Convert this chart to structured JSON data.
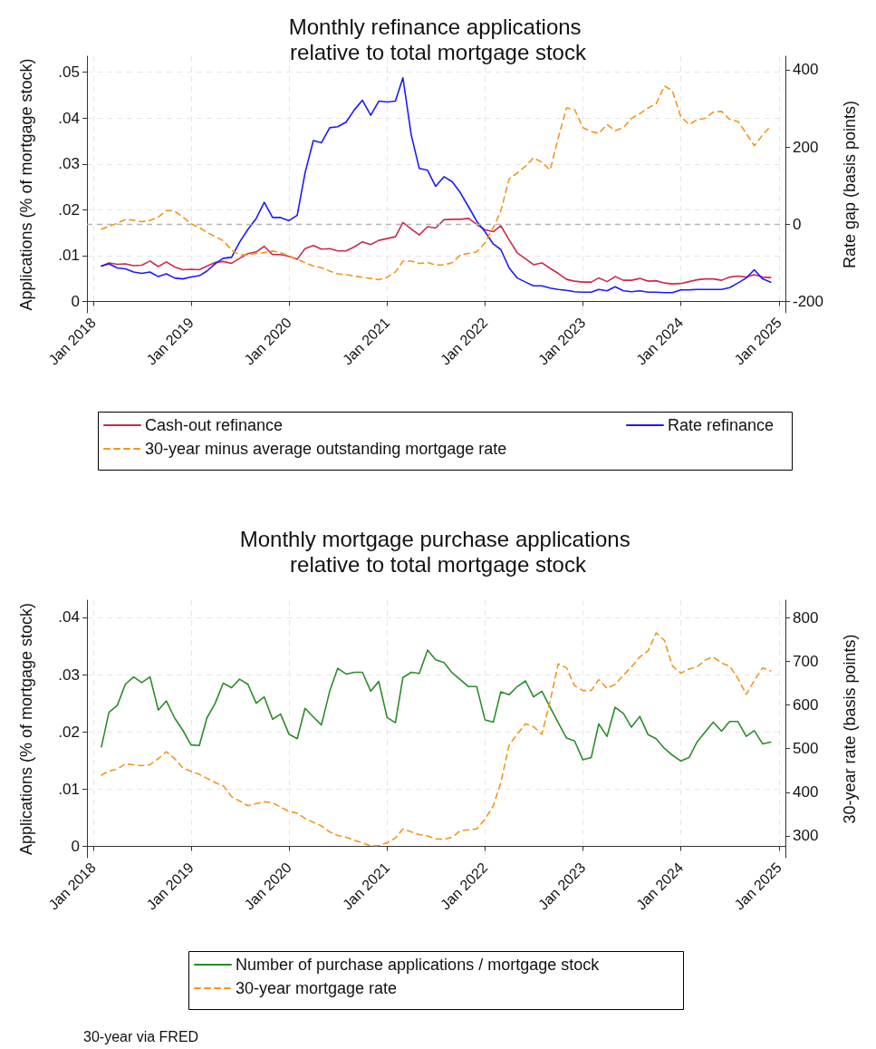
{
  "chart_data": [
    {
      "type": "line",
      "title": "Monthly refinance applications relative to total mortgage stock",
      "ylabel": "Applications (% of mortgage stock)",
      "y2label": "Rate gap (basis points)",
      "x": [
        "2018-02",
        "2018-03",
        "2018-04",
        "2018-05",
        "2018-06",
        "2018-07",
        "2018-08",
        "2018-09",
        "2018-10",
        "2018-11",
        "2018-12",
        "2019-01",
        "2019-02",
        "2019-03",
        "2019-04",
        "2019-05",
        "2019-06",
        "2019-07",
        "2019-08",
        "2019-09",
        "2019-10",
        "2019-11",
        "2019-12",
        "2020-01",
        "2020-02",
        "2020-03",
        "2020-04",
        "2020-05",
        "2020-06",
        "2020-07",
        "2020-08",
        "2020-09",
        "2020-10",
        "2020-11",
        "2020-12",
        "2021-01",
        "2021-02",
        "2021-03",
        "2021-04",
        "2021-05",
        "2021-06",
        "2021-07",
        "2021-08",
        "2021-09",
        "2021-10",
        "2021-11",
        "2021-12",
        "2022-01",
        "2022-02",
        "2022-03",
        "2022-04",
        "2022-05",
        "2022-06",
        "2022-07",
        "2022-08",
        "2022-09",
        "2022-10",
        "2022-11",
        "2022-12",
        "2023-01",
        "2023-02",
        "2023-03",
        "2023-04",
        "2023-05",
        "2023-06",
        "2023-07",
        "2023-08",
        "2023-09",
        "2023-10",
        "2023-11",
        "2023-12",
        "2024-01",
        "2024-02",
        "2024-03",
        "2024-04",
        "2024-05",
        "2024-06",
        "2024-07",
        "2024-08",
        "2024-09",
        "2024-10",
        "2024-11",
        "2024-12"
      ],
      "xlim": [
        "2017-12-09",
        "2025-01-25"
      ],
      "xticks": [
        {
          "value": "2018-01",
          "label": "Jan 2018"
        },
        {
          "value": "2019-01",
          "label": "Jan 2019"
        },
        {
          "value": "2020-01",
          "label": "Jan 2020"
        },
        {
          "value": "2021-01",
          "label": "Jan 2021"
        },
        {
          "value": "2022-01",
          "label": "Jan 2022"
        },
        {
          "value": "2023-01",
          "label": "Jan 2023"
        },
        {
          "value": "2024-01",
          "label": "Jan 2024"
        },
        {
          "value": "2025-01",
          "label": "Jan 2025"
        }
      ],
      "ylim": [
        -0.0025,
        0.0535
      ],
      "yticks": [
        {
          "value": 0,
          "label": "0"
        },
        {
          "value": 0.01,
          "label": ".01"
        },
        {
          "value": 0.02,
          "label": ".02"
        },
        {
          "value": 0.03,
          "label": ".03"
        },
        {
          "value": 0.04,
          "label": ".04"
        },
        {
          "value": 0.05,
          "label": ".05"
        }
      ],
      "y2lim": [
        -230,
        435
      ],
      "y2ticks": [
        -200,
        0,
        200,
        400
      ],
      "series": [
        {
          "name": "Cash-out refinance",
          "color": "#cc2a4a",
          "line_style": "solid",
          "values": [
            0.0077,
            0.0084,
            0.0081,
            0.0082,
            0.0078,
            0.0079,
            0.0088,
            0.0076,
            0.0086,
            0.0075,
            0.0069,
            0.007,
            0.0069,
            0.0077,
            0.0085,
            0.0087,
            0.0083,
            0.0094,
            0.0104,
            0.0108,
            0.012,
            0.0102,
            0.0102,
            0.0098,
            0.0092,
            0.0115,
            0.0122,
            0.0114,
            0.0115,
            0.011,
            0.011,
            0.0119,
            0.013,
            0.0124,
            0.0133,
            0.0137,
            0.0141,
            0.0172,
            0.0158,
            0.0145,
            0.0163,
            0.016,
            0.0178,
            0.0179,
            0.0179,
            0.0181,
            0.0168,
            0.0156,
            0.0152,
            0.0165,
            0.0134,
            0.0106,
            0.0093,
            0.008,
            0.0084,
            0.0072,
            0.0061,
            0.0048,
            0.0044,
            0.0042,
            0.0042,
            0.0051,
            0.0043,
            0.0054,
            0.0046,
            0.0046,
            0.005,
            0.0044,
            0.0045,
            0.004,
            0.0038,
            0.0039,
            0.0043,
            0.0047,
            0.0049,
            0.0049,
            0.0046,
            0.0053,
            0.0055,
            0.0053,
            0.0058,
            0.0053,
            0.0052
          ]
        },
        {
          "name": "Rate refinance",
          "color": "#1a1aff",
          "line_style": "solid",
          "values": [
            0.0077,
            0.0082,
            0.0073,
            0.0071,
            0.0064,
            0.0061,
            0.0064,
            0.0054,
            0.006,
            0.0051,
            0.0049,
            0.0053,
            0.0056,
            0.0066,
            0.0082,
            0.0094,
            0.0096,
            0.0129,
            0.0157,
            0.0181,
            0.0216,
            0.0183,
            0.0183,
            0.0176,
            0.0188,
            0.028,
            0.0351,
            0.0346,
            0.0379,
            0.0381,
            0.0391,
            0.0418,
            0.0439,
            0.0406,
            0.0437,
            0.0435,
            0.0437,
            0.0488,
            0.0363,
            0.029,
            0.0286,
            0.0251,
            0.0272,
            0.0261,
            0.0237,
            0.0206,
            0.0175,
            0.0152,
            0.0125,
            0.0113,
            0.0073,
            0.0051,
            0.0042,
            0.0034,
            0.0034,
            0.0029,
            0.0026,
            0.0024,
            0.0021,
            0.002,
            0.002,
            0.0026,
            0.0023,
            0.0032,
            0.0023,
            0.0021,
            0.0023,
            0.002,
            0.002,
            0.0019,
            0.0019,
            0.0025,
            0.0025,
            0.0026,
            0.0026,
            0.0026,
            0.0026,
            0.003,
            0.004,
            0.0051,
            0.0069,
            0.0049,
            0.0042
          ]
        },
        {
          "name": "30-year minus average outstanding mortgage rate",
          "color": "#f0961e",
          "line_style": "dashed",
          "axis": "y2",
          "values": [
            -13,
            -6,
            2,
            12,
            10,
            6,
            9,
            18,
            35,
            34,
            18,
            1,
            -9,
            -21,
            -33,
            -43,
            -67,
            -80,
            -80,
            -76,
            -74,
            -70,
            -74,
            -83,
            -91,
            -100,
            -109,
            -113,
            -122,
            -129,
            -131,
            -135,
            -138,
            -141,
            -144,
            -138,
            -124,
            -96,
            -96,
            -102,
            -100,
            -106,
            -106,
            -100,
            -80,
            -76,
            -72,
            -49,
            -9,
            34,
            117,
            132,
            150,
            172,
            160,
            140,
            223,
            301,
            297,
            250,
            240,
            235,
            258,
            242,
            250,
            274,
            286,
            301,
            311,
            358,
            345,
            278,
            258,
            270,
            274,
            290,
            292,
            271,
            266,
            235,
            203,
            231,
            254
          ]
        }
      ],
      "ref_lines": [
        {
          "axis": "y2",
          "value": 0,
          "color": "#b4b4b4",
          "line_style": "dashed"
        }
      ],
      "marker": "none",
      "grid": true,
      "legend": "bottom"
    },
    {
      "type": "line",
      "title": "Monthly mortgage purchase applications relative to total mortgage stock",
      "ylabel": "Applications (% of mortgage stock)",
      "y2label": "30-year rate (basis points)",
      "x": [
        "2018-02",
        "2018-03",
        "2018-04",
        "2018-05",
        "2018-06",
        "2018-07",
        "2018-08",
        "2018-09",
        "2018-10",
        "2018-11",
        "2018-12",
        "2019-01",
        "2019-02",
        "2019-03",
        "2019-04",
        "2019-05",
        "2019-06",
        "2019-07",
        "2019-08",
        "2019-09",
        "2019-10",
        "2019-11",
        "2019-12",
        "2020-01",
        "2020-02",
        "2020-03",
        "2020-04",
        "2020-05",
        "2020-06",
        "2020-07",
        "2020-08",
        "2020-09",
        "2020-10",
        "2020-11",
        "2020-12",
        "2021-01",
        "2021-02",
        "2021-03",
        "2021-04",
        "2021-05",
        "2021-06",
        "2021-07",
        "2021-08",
        "2021-09",
        "2021-10",
        "2021-11",
        "2021-12",
        "2022-01",
        "2022-02",
        "2022-03",
        "2022-04",
        "2022-05",
        "2022-06",
        "2022-07",
        "2022-08",
        "2022-09",
        "2022-10",
        "2022-11",
        "2022-12",
        "2023-01",
        "2023-02",
        "2023-03",
        "2023-04",
        "2023-05",
        "2023-06",
        "2023-07",
        "2023-08",
        "2023-09",
        "2023-10",
        "2023-11",
        "2023-12",
        "2024-01",
        "2024-02",
        "2024-03",
        "2024-04",
        "2024-05",
        "2024-06",
        "2024-07",
        "2024-08",
        "2024-09",
        "2024-10",
        "2024-11",
        "2024-12"
      ],
      "xlim": [
        "2017-12-09",
        "2025-01-25"
      ],
      "xticks": [
        {
          "value": "2018-01",
          "label": "Jan 2018"
        },
        {
          "value": "2019-01",
          "label": "Jan 2019"
        },
        {
          "value": "2020-01",
          "label": "Jan 2020"
        },
        {
          "value": "2021-01",
          "label": "Jan 2021"
        },
        {
          "value": "2022-01",
          "label": "Jan 2022"
        },
        {
          "value": "2023-01",
          "label": "Jan 2023"
        },
        {
          "value": "2024-01",
          "label": "Jan 2024"
        },
        {
          "value": "2025-01",
          "label": "Jan 2025"
        }
      ],
      "ylim": [
        -0.002,
        0.043
      ],
      "yticks": [
        {
          "value": 0,
          "label": "0"
        },
        {
          "value": 0.01,
          "label": ".01"
        },
        {
          "value": 0.02,
          "label": ".02"
        },
        {
          "value": 0.03,
          "label": ".03"
        },
        {
          "value": 0.04,
          "label": ".04"
        }
      ],
      "y2lim": [
        250,
        840
      ],
      "y2ticks": [
        300,
        400,
        500,
        600,
        700,
        800
      ],
      "series": [
        {
          "name": "Number of purchase applications / mortgage stock",
          "color": "#2a8c2a",
          "line_style": "solid",
          "values": [
            0.0174,
            0.0234,
            0.0246,
            0.0283,
            0.0296,
            0.0286,
            0.0296,
            0.0238,
            0.0254,
            0.0224,
            0.0203,
            0.0177,
            0.0176,
            0.0224,
            0.025,
            0.0285,
            0.0277,
            0.0292,
            0.0283,
            0.025,
            0.0261,
            0.0222,
            0.0231,
            0.0196,
            0.0188,
            0.0241,
            0.0226,
            0.0212,
            0.0271,
            0.0311,
            0.0301,
            0.0304,
            0.0304,
            0.0271,
            0.0288,
            0.0225,
            0.0216,
            0.0295,
            0.0304,
            0.0302,
            0.0343,
            0.0326,
            0.0321,
            0.0303,
            0.0291,
            0.0279,
            0.0279,
            0.0221,
            0.0217,
            0.027,
            0.0265,
            0.0279,
            0.0289,
            0.0261,
            0.0271,
            0.0243,
            0.0216,
            0.0189,
            0.0184,
            0.0151,
            0.0155,
            0.0214,
            0.0192,
            0.0243,
            0.0232,
            0.0208,
            0.0227,
            0.0195,
            0.0188,
            0.0171,
            0.0159,
            0.0149,
            0.0155,
            0.0182,
            0.02,
            0.0217,
            0.0201,
            0.0218,
            0.0218,
            0.0192,
            0.0202,
            0.0179,
            0.0182
          ]
        },
        {
          "name": "30-year mortgage rate",
          "color": "#f0961e",
          "line_style": "dashed",
          "axis": "y2",
          "values": [
            439,
            449,
            453,
            465,
            463,
            461,
            463,
            477,
            493,
            477,
            456,
            448,
            441,
            432,
            422,
            415,
            390,
            380,
            369,
            374,
            378,
            376,
            366,
            356,
            352,
            340,
            331,
            323,
            309,
            301,
            297,
            290,
            284,
            277,
            278,
            284,
            295,
            316,
            309,
            303,
            300,
            293,
            292,
            297,
            312,
            314,
            316,
            338,
            369,
            422,
            508,
            533,
            557,
            550,
            533,
            609,
            694,
            685,
            644,
            633,
            633,
            658,
            638,
            647,
            668,
            687,
            710,
            724,
            765,
            748,
            689,
            673,
            682,
            687,
            703,
            710,
            696,
            689,
            661,
            624,
            656,
            685,
            678
          ]
        }
      ],
      "annotations": [
        "30-year via FRED"
      ],
      "marker": "none",
      "grid": true,
      "legend": "bottom"
    }
  ]
}
